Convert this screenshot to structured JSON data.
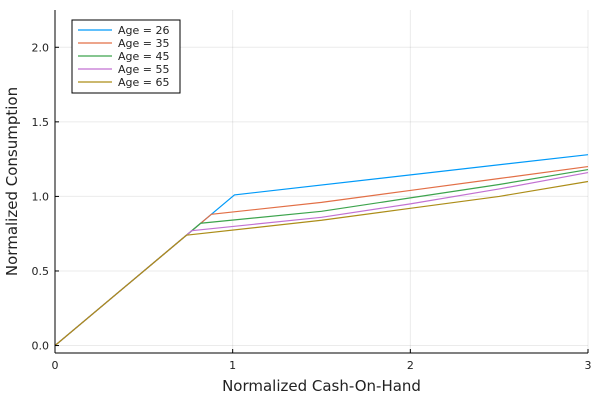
{
  "chart_data": {
    "type": "line",
    "title": "",
    "xlabel": "Normalized Cash-On-Hand",
    "ylabel": "Normalized Consumption",
    "xlim": [
      0,
      3
    ],
    "ylim": [
      -0.05,
      2.25
    ],
    "xticks": [
      0,
      1,
      2,
      3
    ],
    "yticks": [
      0.0,
      0.5,
      1.0,
      1.5,
      2.0
    ],
    "xtick_labels": [
      "0",
      "1",
      "2",
      "3"
    ],
    "ytick_labels": [
      "0.0",
      "0.5",
      "1.0",
      "1.5",
      "2.0"
    ],
    "grid": true,
    "legend_position": "top-left",
    "series": [
      {
        "name": "Age = 26",
        "color": "#009af9",
        "x": [
          0,
          1.01,
          3.0
        ],
        "y": [
          0,
          1.01,
          1.28
        ]
      },
      {
        "name": "Age = 35",
        "color": "#e26f46",
        "x": [
          0,
          0.88,
          1.5,
          2.0,
          2.5,
          3.0
        ],
        "y": [
          0,
          0.88,
          0.96,
          1.04,
          1.12,
          1.2
        ]
      },
      {
        "name": "Age = 45",
        "color": "#3da44d",
        "x": [
          0,
          0.82,
          1.5,
          2.0,
          2.5,
          3.0
        ],
        "y": [
          0,
          0.82,
          0.9,
          0.99,
          1.08,
          1.18
        ]
      },
      {
        "name": "Age = 55",
        "color": "#c271d2",
        "x": [
          0,
          0.77,
          1.5,
          2.0,
          2.5,
          3.0
        ],
        "y": [
          0,
          0.77,
          0.86,
          0.95,
          1.05,
          1.16
        ]
      },
      {
        "name": "Age = 65",
        "color": "#ac8d18",
        "x": [
          0,
          0.74,
          1.5,
          2.0,
          2.5,
          3.0
        ],
        "y": [
          0,
          0.74,
          0.84,
          0.92,
          1.0,
          1.1
        ]
      }
    ]
  }
}
